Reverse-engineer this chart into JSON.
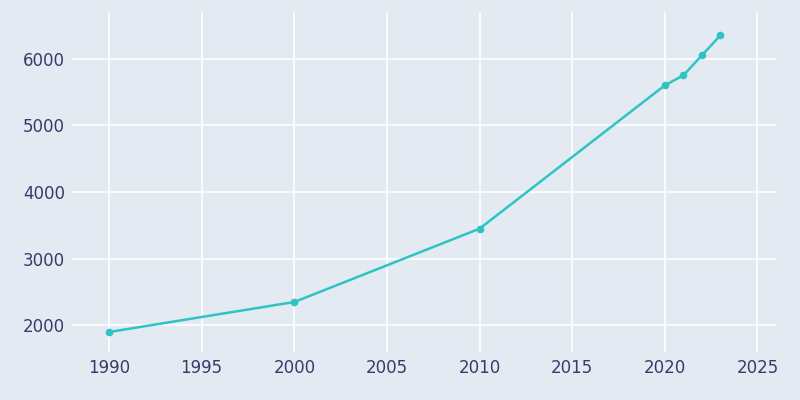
{
  "years": [
    1990,
    2000,
    2010,
    2020,
    2021,
    2022,
    2023
  ],
  "population": [
    1900,
    2350,
    3450,
    5600,
    5750,
    6050,
    6350
  ],
  "line_color": "#2EC4C4",
  "bg_color": "#E3EAF2",
  "fig_bg_color": "#E3EAF2",
  "grid_color": "#FFFFFF",
  "tick_color": "#3A3A6A",
  "xlim": [
    1988,
    2026
  ],
  "ylim": [
    1600,
    6700
  ],
  "xticks": [
    1990,
    1995,
    2000,
    2005,
    2010,
    2015,
    2020,
    2025
  ],
  "yticks": [
    2000,
    3000,
    4000,
    5000,
    6000
  ],
  "linewidth": 1.8,
  "marker": "o",
  "markersize": 4.5,
  "tick_fontsize": 12
}
